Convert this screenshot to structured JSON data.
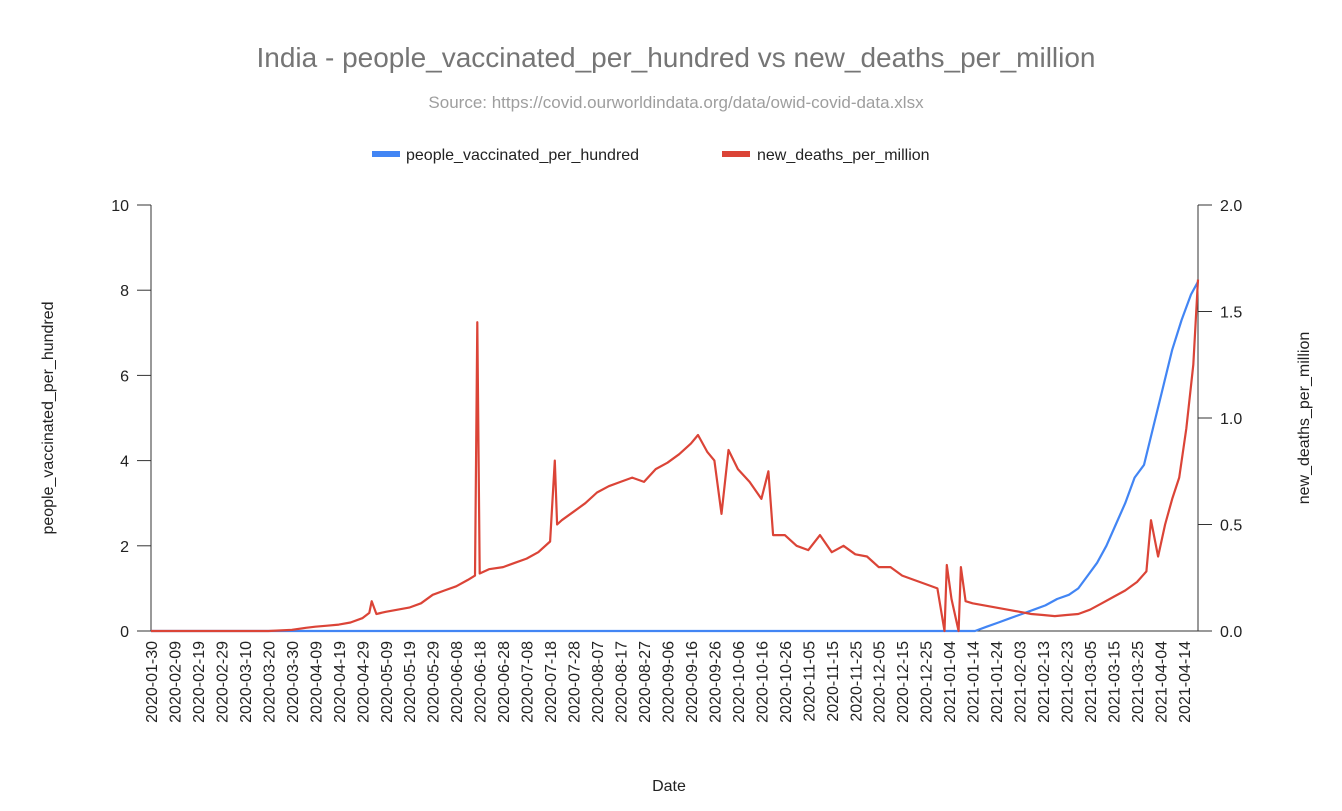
{
  "chart_data": {
    "type": "line",
    "title": "India - people_vaccinated_per_hundred vs new_deaths_per_million",
    "subtitle": "Source: https://covid.ourworldindata.org/data/owid-covid-data.xlsx",
    "xlabel": "Date",
    "ylabel_left": "people_vaccinated_per_hundred",
    "ylabel_right": "new_deaths_per_million",
    "x_range": [
      "2020-01-30",
      "2021-04-20"
    ],
    "ylim_left": [
      0,
      10
    ],
    "ylim_right": [
      0,
      2.0
    ],
    "y_ticks_left": [
      "0",
      "2",
      "4",
      "6",
      "8",
      "10"
    ],
    "y_ticks_right": [
      "0.0",
      "0.5",
      "1.0",
      "1.5",
      "2.0"
    ],
    "x_ticks": [
      "2020-01-30",
      "2020-02-09",
      "2020-02-19",
      "2020-02-29",
      "2020-03-10",
      "2020-03-20",
      "2020-03-30",
      "2020-04-09",
      "2020-04-19",
      "2020-04-29",
      "2020-05-09",
      "2020-05-19",
      "2020-05-29",
      "2020-06-08",
      "2020-06-18",
      "2020-06-28",
      "2020-07-08",
      "2020-07-18",
      "2020-07-28",
      "2020-08-07",
      "2020-08-17",
      "2020-08-27",
      "2020-09-06",
      "2020-09-16",
      "2020-09-26",
      "2020-10-06",
      "2020-10-16",
      "2020-10-26",
      "2020-11-05",
      "2020-11-15",
      "2020-11-25",
      "2020-12-05",
      "2020-12-15",
      "2020-12-25",
      "2021-01-04",
      "2021-01-14",
      "2021-01-24",
      "2021-02-03",
      "2021-02-13",
      "2021-02-23",
      "2021-03-05",
      "2021-03-15",
      "2021-03-25",
      "2021-04-04",
      "2021-04-14"
    ],
    "legend_position": "top",
    "grid": false,
    "series": [
      {
        "name": "people_vaccinated_per_hundred",
        "color": "#4285f4",
        "axis": "left",
        "points": [
          [
            "2020-01-30",
            0
          ],
          [
            "2020-06-01",
            0
          ],
          [
            "2020-10-01",
            0
          ],
          [
            "2021-01-15",
            0
          ],
          [
            "2021-01-20",
            0.1
          ],
          [
            "2021-01-25",
            0.2
          ],
          [
            "2021-01-30",
            0.3
          ],
          [
            "2021-02-04",
            0.4
          ],
          [
            "2021-02-09",
            0.5
          ],
          [
            "2021-02-14",
            0.6
          ],
          [
            "2021-02-19",
            0.75
          ],
          [
            "2021-02-24",
            0.85
          ],
          [
            "2021-02-28",
            1.0
          ],
          [
            "2021-03-04",
            1.3
          ],
          [
            "2021-03-08",
            1.6
          ],
          [
            "2021-03-12",
            2.0
          ],
          [
            "2021-03-16",
            2.5
          ],
          [
            "2021-03-20",
            3.0
          ],
          [
            "2021-03-24",
            3.6
          ],
          [
            "2021-03-28",
            3.9
          ],
          [
            "2021-04-01",
            4.8
          ],
          [
            "2021-04-05",
            5.7
          ],
          [
            "2021-04-09",
            6.6
          ],
          [
            "2021-04-13",
            7.3
          ],
          [
            "2021-04-17",
            7.9
          ],
          [
            "2021-04-20",
            8.2
          ]
        ]
      },
      {
        "name": "new_deaths_per_million",
        "color": "#db4437",
        "axis": "right",
        "points": [
          [
            "2020-01-30",
            0
          ],
          [
            "2020-03-20",
            0
          ],
          [
            "2020-03-30",
            0.005
          ],
          [
            "2020-04-05",
            0.015
          ],
          [
            "2020-04-09",
            0.02
          ],
          [
            "2020-04-14",
            0.025
          ],
          [
            "2020-04-19",
            0.03
          ],
          [
            "2020-04-24",
            0.04
          ],
          [
            "2020-04-29",
            0.06
          ],
          [
            "2020-05-02",
            0.085
          ],
          [
            "2020-05-03",
            0.14
          ],
          [
            "2020-05-05",
            0.08
          ],
          [
            "2020-05-09",
            0.09
          ],
          [
            "2020-05-14",
            0.1
          ],
          [
            "2020-05-19",
            0.11
          ],
          [
            "2020-05-24",
            0.13
          ],
          [
            "2020-05-29",
            0.17
          ],
          [
            "2020-06-03",
            0.19
          ],
          [
            "2020-06-08",
            0.21
          ],
          [
            "2020-06-13",
            0.24
          ],
          [
            "2020-06-16",
            0.26
          ],
          [
            "2020-06-17",
            1.45
          ],
          [
            "2020-06-18",
            0.27
          ],
          [
            "2020-06-22",
            0.29
          ],
          [
            "2020-06-28",
            0.3
          ],
          [
            "2020-07-03",
            0.32
          ],
          [
            "2020-07-08",
            0.34
          ],
          [
            "2020-07-13",
            0.37
          ],
          [
            "2020-07-18",
            0.42
          ],
          [
            "2020-07-20",
            0.8
          ],
          [
            "2020-07-21",
            0.5
          ],
          [
            "2020-07-23",
            0.52
          ],
          [
            "2020-07-28",
            0.56
          ],
          [
            "2020-08-02",
            0.6
          ],
          [
            "2020-08-07",
            0.65
          ],
          [
            "2020-08-12",
            0.68
          ],
          [
            "2020-08-17",
            0.7
          ],
          [
            "2020-08-22",
            0.72
          ],
          [
            "2020-08-27",
            0.7
          ],
          [
            "2020-09-01",
            0.76
          ],
          [
            "2020-09-06",
            0.79
          ],
          [
            "2020-09-11",
            0.83
          ],
          [
            "2020-09-16",
            0.88
          ],
          [
            "2020-09-19",
            0.92
          ],
          [
            "2020-09-23",
            0.84
          ],
          [
            "2020-09-26",
            0.8
          ],
          [
            "2020-09-29",
            0.55
          ],
          [
            "2020-10-02",
            0.85
          ],
          [
            "2020-10-06",
            0.76
          ],
          [
            "2020-10-11",
            0.7
          ],
          [
            "2020-10-16",
            0.62
          ],
          [
            "2020-10-19",
            0.75
          ],
          [
            "2020-10-21",
            0.45
          ],
          [
            "2020-10-26",
            0.45
          ],
          [
            "2020-10-31",
            0.4
          ],
          [
            "2020-11-05",
            0.38
          ],
          [
            "2020-11-10",
            0.45
          ],
          [
            "2020-11-15",
            0.37
          ],
          [
            "2020-11-20",
            0.4
          ],
          [
            "2020-11-25",
            0.36
          ],
          [
            "2020-11-30",
            0.35
          ],
          [
            "2020-12-05",
            0.3
          ],
          [
            "2020-12-10",
            0.3
          ],
          [
            "2020-12-15",
            0.26
          ],
          [
            "2020-12-20",
            0.24
          ],
          [
            "2020-12-25",
            0.22
          ],
          [
            "2020-12-30",
            0.2
          ],
          [
            "2021-01-02",
            0.0
          ],
          [
            "2021-01-03",
            0.31
          ],
          [
            "2021-01-05",
            0.15
          ],
          [
            "2021-01-08",
            0.0
          ],
          [
            "2021-01-09",
            0.3
          ],
          [
            "2021-01-11",
            0.14
          ],
          [
            "2021-01-14",
            0.13
          ],
          [
            "2021-01-19",
            0.12
          ],
          [
            "2021-01-24",
            0.11
          ],
          [
            "2021-01-29",
            0.1
          ],
          [
            "2021-02-03",
            0.09
          ],
          [
            "2021-02-08",
            0.08
          ],
          [
            "2021-02-13",
            0.075
          ],
          [
            "2021-02-18",
            0.07
          ],
          [
            "2021-02-23",
            0.075
          ],
          [
            "2021-02-28",
            0.08
          ],
          [
            "2021-03-05",
            0.1
          ],
          [
            "2021-03-10",
            0.13
          ],
          [
            "2021-03-15",
            0.16
          ],
          [
            "2021-03-20",
            0.19
          ],
          [
            "2021-03-25",
            0.23
          ],
          [
            "2021-03-29",
            0.28
          ],
          [
            "2021-03-31",
            0.52
          ],
          [
            "2021-04-03",
            0.35
          ],
          [
            "2021-04-06",
            0.5
          ],
          [
            "2021-04-09",
            0.62
          ],
          [
            "2021-04-12",
            0.72
          ],
          [
            "2021-04-15",
            0.95
          ],
          [
            "2021-04-18",
            1.25
          ],
          [
            "2021-04-20",
            1.65
          ]
        ]
      }
    ]
  }
}
